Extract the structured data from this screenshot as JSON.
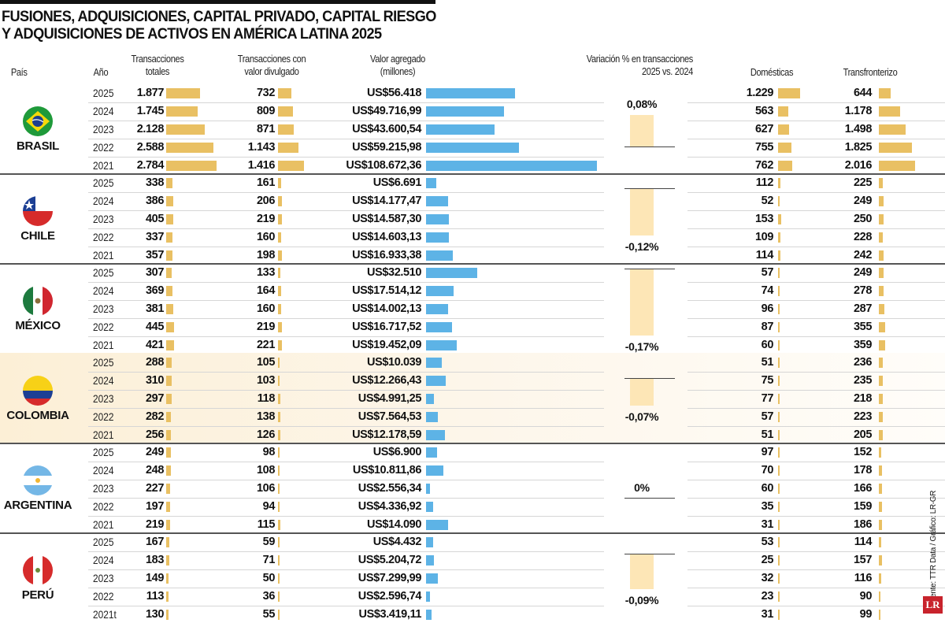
{
  "title_line1": "FUSIONES, ADQUISICIONES, CAPITAL PRIVADO, CAPITAL RIESGO",
  "title_line2": "Y ADQUISICIONES DE ACTIVOS EN AMÉRICA LATINA 2025",
  "headers": {
    "country": "País",
    "year": "Año",
    "total_1": "Transacciones",
    "total_2": "totales",
    "disclosed_1": "Transacciones con",
    "disclosed_2": "valor divulgado",
    "value_1": "Valor agregado",
    "value_2": "(millones)",
    "variation_1": "Variación % en transacciones",
    "variation_2": "2025 vs. 2024",
    "domestic": "Domésticas",
    "cross": "Transfronterizo"
  },
  "source": "Fuente: TTR Data / Gráfico: LR-GR",
  "logo": "LR",
  "colors": {
    "gold_bar": "#e9c063",
    "blue_bar": "#5db3e6",
    "variation_bar": "#fde6b6",
    "highlight": "#fcefd6"
  },
  "chart_data": {
    "type": "table",
    "title": "FUSIONES, ADQUISICIONES, CAPITAL PRIVADO, CAPITAL RIESGO Y ADQUISICIONES DE ACTIVOS EN AMÉRICA LATINA 2025",
    "columns": [
      "Año",
      "Transacciones totales",
      "Transacciones con valor divulgado",
      "Valor agregado (millones)",
      "Domésticas",
      "Transfronterizo"
    ],
    "countries": [
      {
        "name": "BRASIL",
        "flag": "brazil",
        "variation": 0.08,
        "variation_label": "0,08%",
        "highlight": false,
        "rows": [
          {
            "year": "2025",
            "total": "1.877",
            "disclosed": "732",
            "value": "US$56.418",
            "domestic": "1.229",
            "cross": "644"
          },
          {
            "year": "2024",
            "total": "1.745",
            "disclosed": "809",
            "value": "US$49.716,99",
            "domestic": "563",
            "cross": "1.178"
          },
          {
            "year": "2023",
            "total": "2.128",
            "disclosed": "871",
            "value": "US$43.600,54",
            "domestic": "627",
            "cross": "1.498"
          },
          {
            "year": "2022",
            "total": "2.588",
            "disclosed": "1.143",
            "value": "US$59.215,98",
            "domestic": "755",
            "cross": "1.825"
          },
          {
            "year": "2021",
            "total": "2.784",
            "disclosed": "1.416",
            "value": "US$108.672,36",
            "domestic": "762",
            "cross": "2.016"
          }
        ]
      },
      {
        "name": "CHILE",
        "flag": "chile",
        "variation": -0.12,
        "variation_label": "-0,12%",
        "highlight": false,
        "rows": [
          {
            "year": "2025",
            "total": "338",
            "disclosed": "161",
            "value": "US$6.691",
            "domestic": "112",
            "cross": "225"
          },
          {
            "year": "2024",
            "total": "386",
            "disclosed": "206",
            "value": "US$14.177,47",
            "domestic": "52",
            "cross": "249"
          },
          {
            "year": "2023",
            "total": "405",
            "disclosed": "219",
            "value": "US$14.587,30",
            "domestic": "153",
            "cross": "250"
          },
          {
            "year": "2022",
            "total": "337",
            "disclosed": "160",
            "value": "US$14.603,13",
            "domestic": "109",
            "cross": "228"
          },
          {
            "year": "2021",
            "total": "357",
            "disclosed": "198",
            "value": "US$16.933,38",
            "domestic": "114",
            "cross": "242"
          }
        ]
      },
      {
        "name": "MÉXICO",
        "flag": "mexico",
        "variation": -0.17,
        "variation_label": "-0,17%",
        "highlight": false,
        "rows": [
          {
            "year": "2025",
            "total": "307",
            "disclosed": "133",
            "value": "US$32.510",
            "domestic": "57",
            "cross": "249"
          },
          {
            "year": "2024",
            "total": "369",
            "disclosed": "164",
            "value": "US$17.514,12",
            "domestic": "74",
            "cross": "278"
          },
          {
            "year": "2023",
            "total": "381",
            "disclosed": "160",
            "value": "US$14.002,13",
            "domestic": "96",
            "cross": "287"
          },
          {
            "year": "2022",
            "total": "445",
            "disclosed": "219",
            "value": "US$16.717,52",
            "domestic": "87",
            "cross": "355"
          },
          {
            "year": "2021",
            "total": "421",
            "disclosed": "221",
            "value": "US$19.452,09",
            "domestic": "60",
            "cross": "359"
          }
        ]
      },
      {
        "name": "COLOMBIA",
        "flag": "colombia",
        "variation": -0.07,
        "variation_label": "-0,07%",
        "highlight": true,
        "rows": [
          {
            "year": "2025",
            "total": "288",
            "disclosed": "105",
            "value": "US$10.039",
            "domestic": "51",
            "cross": "236"
          },
          {
            "year": "2024",
            "total": "310",
            "disclosed": "103",
            "value": "US$12.266,43",
            "domestic": "75",
            "cross": "235"
          },
          {
            "year": "2023",
            "total": "297",
            "disclosed": "118",
            "value": "US$4.991,25",
            "domestic": "77",
            "cross": "218"
          },
          {
            "year": "2022",
            "total": "282",
            "disclosed": "138",
            "value": "US$7.564,53",
            "domestic": "57",
            "cross": "223"
          },
          {
            "year": "2021",
            "total": "256",
            "disclosed": "126",
            "value": "US$12.178,59",
            "domestic": "51",
            "cross": "205"
          }
        ]
      },
      {
        "name": "ARGENTINA",
        "flag": "argentina",
        "variation": 0,
        "variation_label": "0%",
        "highlight": false,
        "rows": [
          {
            "year": "2025",
            "total": "249",
            "disclosed": "98",
            "value": "US$6.900",
            "domestic": "97",
            "cross": "152"
          },
          {
            "year": "2024",
            "total": "248",
            "disclosed": "108",
            "value": "US$10.811,86",
            "domestic": "70",
            "cross": "178"
          },
          {
            "year": "2023",
            "total": "227",
            "disclosed": "106",
            "value": "US$2.556,34",
            "domestic": "60",
            "cross": "166"
          },
          {
            "year": "2022",
            "total": "197",
            "disclosed": "94",
            "value": "US$4.336,92",
            "domestic": "35",
            "cross": "159"
          },
          {
            "year": "2021",
            "total": "219",
            "disclosed": "115",
            "value": "US$14.090",
            "domestic": "31",
            "cross": "186"
          }
        ]
      },
      {
        "name": "PERÚ",
        "flag": "peru",
        "variation": -0.09,
        "variation_label": "-0,09%",
        "highlight": false,
        "rows": [
          {
            "year": "2025",
            "total": "167",
            "disclosed": "59",
            "value": "US$4.432",
            "domestic": "53",
            "cross": "114"
          },
          {
            "year": "2024",
            "total": "183",
            "disclosed": "71",
            "value": "US$5.204,72",
            "domestic": "25",
            "cross": "157"
          },
          {
            "year": "2023",
            "total": "149",
            "disclosed": "50",
            "value": "US$7.299,99",
            "domestic": "32",
            "cross": "116"
          },
          {
            "year": "2022",
            "total": "113",
            "disclosed": "36",
            "value": "US$2.596,74",
            "domestic": "23",
            "cross": "90"
          },
          {
            "year": "2021t",
            "total": "130",
            "disclosed": "55",
            "value": "US$3.419,11",
            "domestic": "31",
            "cross": "99"
          }
        ]
      }
    ]
  }
}
